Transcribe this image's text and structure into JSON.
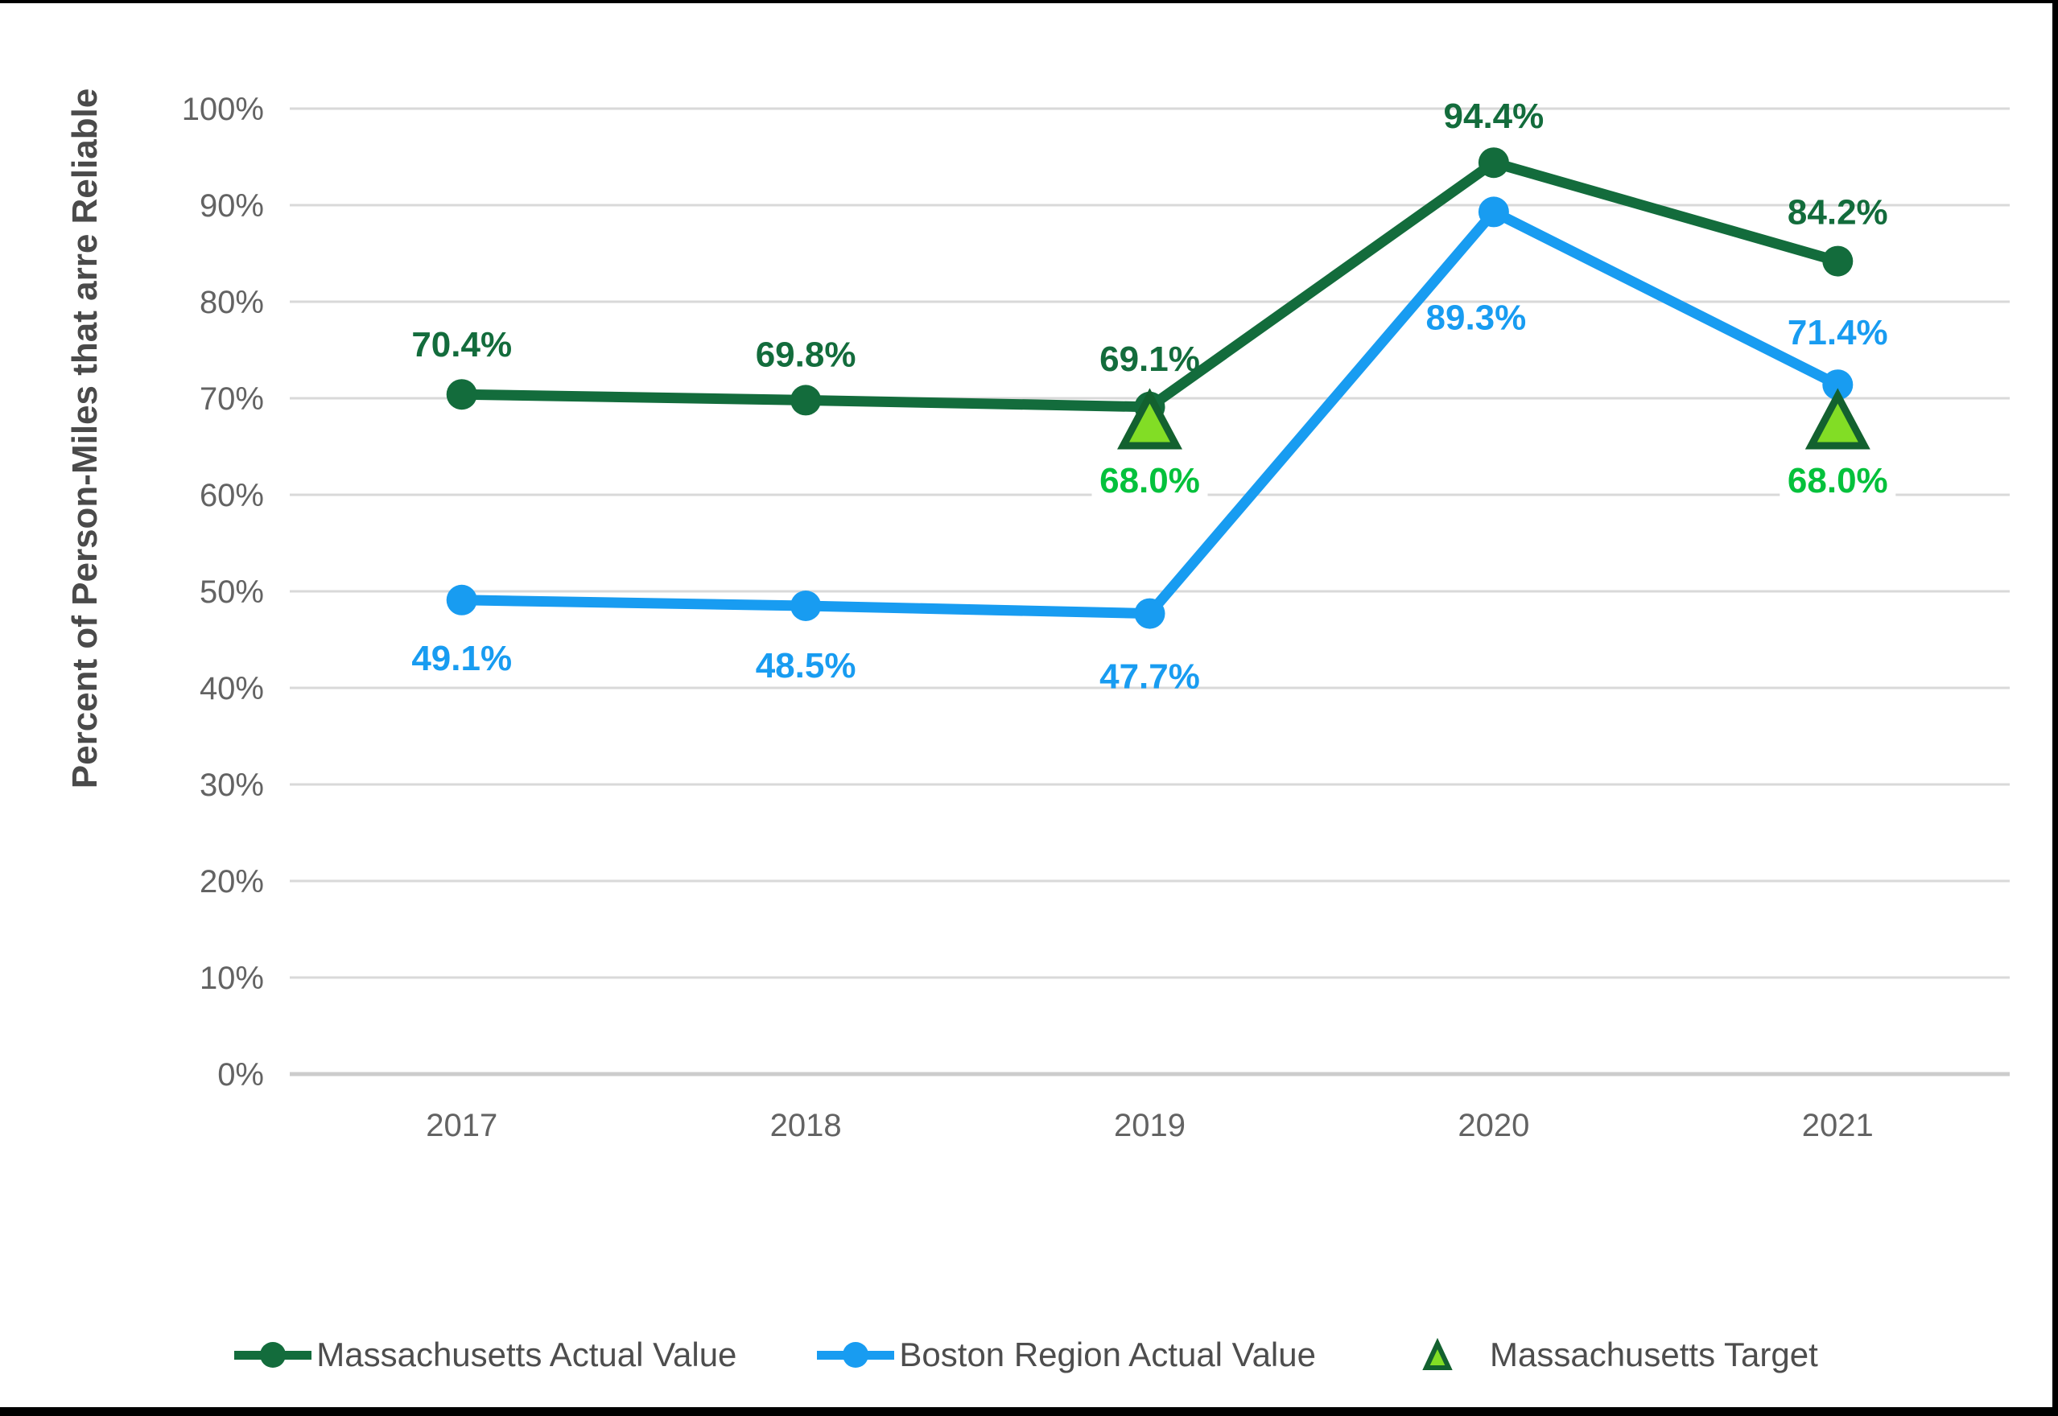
{
  "frame": {
    "border_color": "#000000",
    "background": "#FFFFFF"
  },
  "chart_data": {
    "type": "line",
    "title": "",
    "xlabel": "",
    "ylabel": "Percent of Person-Miles that arre Reliable",
    "categories": [
      "2017",
      "2018",
      "2019",
      "2020",
      "2021"
    ],
    "y_ticks": [
      "0%",
      "10%",
      "20%",
      "30%",
      "40%",
      "50%",
      "60%",
      "70%",
      "80%",
      "90%",
      "100%"
    ],
    "ylim": [
      0,
      100
    ],
    "grid": "horizontal",
    "grid_color": "#D9D9D9",
    "axis_line_color": "#CCCCCC",
    "tick_color": "#636363",
    "axis_title_color": "#4A4A4A",
    "legend_position": "bottom",
    "legend_text_color": "#4D4D4D",
    "series": [
      {
        "name": "Massachusetts Actual Value",
        "marker": "circle",
        "color": "#136C3C",
        "values": [
          70.4,
          69.8,
          69.1,
          94.4,
          84.2
        ],
        "labels": [
          "70.4%",
          "69.8%",
          "69.1%",
          "94.4%",
          "84.2%"
        ],
        "label_offsets": [
          [
            0,
            -62
          ],
          [
            0,
            -57
          ],
          [
            0,
            -60
          ],
          [
            0,
            -58
          ],
          [
            0,
            -61
          ]
        ]
      },
      {
        "name": "Boston Region Actual Value",
        "marker": "circle",
        "color": "#189CF1",
        "values": [
          49.1,
          48.5,
          47.7,
          89.3,
          71.4
        ],
        "labels": [
          "49.1%",
          "48.5%",
          "47.7%",
          "89.3%",
          "71.4%"
        ],
        "label_offsets": [
          [
            0,
            72
          ],
          [
            0,
            74
          ],
          [
            0,
            78
          ],
          [
            -22,
            131
          ],
          [
            0,
            -65
          ]
        ]
      },
      {
        "name": "Massachusetts Target",
        "marker": "triangle",
        "color": "#82DD25",
        "border_color": "#13612F",
        "label_color": "#04C13C",
        "label_bg": "#FFFFFF",
        "values": [
          null,
          null,
          68.0,
          null,
          68.0
        ],
        "labels": [
          null,
          null,
          "68.0%",
          null,
          "68.0%"
        ],
        "label_offsets": [
          null,
          null,
          [
            0,
            78
          ],
          null,
          [
            0,
            78
          ]
        ]
      }
    ]
  }
}
